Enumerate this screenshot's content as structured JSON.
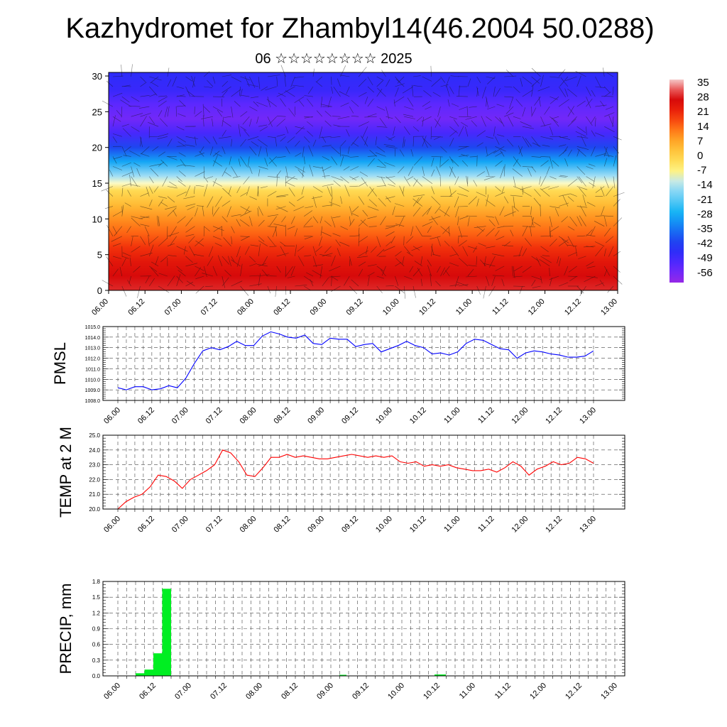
{
  "header": {
    "title": "Kazhydromet for Zhambyl14(46.2004 50.0288)",
    "subtitle": "06 ☆☆☆☆☆☆☆☆ 2025"
  },
  "colors": {
    "pmsl_line": "#0000ff",
    "temp_line": "#ff0000",
    "precip_bar": "#00ee22",
    "grid": "#444444"
  },
  "chart_data": [
    {
      "id": "vertical-section",
      "type": "heatmap",
      "title": "",
      "xlabel": "",
      "ylabel": "",
      "x_ticks": [
        "06.00",
        "06.12",
        "07.00",
        "07.12",
        "08.00",
        "08.12",
        "09.00",
        "09.12",
        "10.00",
        "10.12",
        "11.00",
        "11.12",
        "12.00",
        "12.12",
        "13.00"
      ],
      "y_ticks": [
        0,
        5,
        10,
        15,
        20,
        25,
        30
      ],
      "ylim": [
        0,
        30.5
      ],
      "colorbar_labels": [
        "35",
        "28",
        "21",
        "14",
        "7",
        "0",
        "-7",
        "-14",
        "-21",
        "-28",
        "-35",
        "-42",
        "-49",
        "-56"
      ],
      "colorbar_range": [
        -63,
        38
      ],
      "temperature_profile": {
        "height": [
          0,
          2,
          4,
          6,
          8,
          10,
          12,
          14,
          15,
          16,
          18,
          20,
          22,
          24,
          26,
          28,
          30
        ],
        "value": [
          30,
          28,
          25,
          20,
          15,
          10,
          4,
          -2,
          -10,
          -15,
          -30,
          -42,
          -52,
          -58,
          -55,
          -50,
          -48
        ]
      },
      "overlay": "wind barbs"
    },
    {
      "id": "pmsl",
      "type": "line",
      "ylabel": "PMSL",
      "ylim": [
        1008.0,
        1015.0
      ],
      "y_ticks": [
        "1008.0",
        "1009.0",
        "1010.0",
        "1011.0",
        "1012.0",
        "1013.0",
        "1014.0",
        "1015.0"
      ],
      "x_ticks": [
        "06.00",
        "06.12",
        "07.00",
        "07.12",
        "08.00",
        "08.12",
        "09.00",
        "09.12",
        "10.00",
        "10.12",
        "11.00",
        "11.12",
        "12.00",
        "12.12",
        "13.00"
      ],
      "series": [
        {
          "values": [
            1009.2,
            1009.0,
            1009.3,
            1009.3,
            1009.0,
            1009.1,
            1009.4,
            1009.2,
            1010.1,
            1011.5,
            1012.7,
            1013.0,
            1012.8,
            1013.1,
            1013.6,
            1013.2,
            1013.2,
            1014.1,
            1014.5,
            1014.3,
            1014.0,
            1013.9,
            1014.2,
            1013.4,
            1013.3,
            1013.9,
            1013.8,
            1013.8,
            1013.1,
            1013.3,
            1013.4,
            1012.6,
            1012.9,
            1013.2,
            1013.6,
            1013.2,
            1013.0,
            1012.4,
            1012.5,
            1012.3,
            1012.6,
            1013.4,
            1013.8,
            1013.7,
            1013.3,
            1012.9,
            1012.8,
            1012.0,
            1012.5,
            1012.7,
            1012.6,
            1012.4,
            1012.3,
            1012.1,
            1012.1,
            1012.2,
            1012.7
          ]
        }
      ]
    },
    {
      "id": "temp2m",
      "type": "line",
      "ylabel": "TEMP at 2 M",
      "ylim": [
        20.0,
        25.0
      ],
      "y_ticks": [
        "20.0",
        "21.0",
        "22.0",
        "23.0",
        "24.0",
        "25.0"
      ],
      "x_ticks": [
        "06.00",
        "06.12",
        "07.00",
        "07.12",
        "08.00",
        "08.12",
        "09.00",
        "09.12",
        "10.00",
        "10.12",
        "11.00",
        "11.12",
        "12.00",
        "12.12",
        "13.00"
      ],
      "series": [
        {
          "values": [
            20.0,
            20.5,
            20.8,
            21.0,
            21.5,
            22.3,
            22.2,
            21.9,
            21.4,
            22.0,
            22.3,
            22.6,
            23.0,
            24.0,
            23.8,
            23.2,
            22.3,
            22.2,
            22.8,
            23.5,
            23.5,
            23.7,
            23.5,
            23.6,
            23.5,
            23.4,
            23.4,
            23.5,
            23.6,
            23.7,
            23.6,
            23.5,
            23.6,
            23.5,
            23.6,
            23.2,
            23.1,
            23.2,
            22.9,
            23.0,
            22.9,
            23.0,
            22.8,
            22.7,
            22.6,
            22.6,
            22.7,
            22.5,
            22.8,
            23.2,
            22.9,
            22.3,
            22.7,
            22.9,
            23.2,
            23.0,
            23.1,
            23.5,
            23.4,
            23.1
          ]
        }
      ]
    },
    {
      "id": "precip",
      "type": "bar",
      "ylabel": "PRECIP, mm",
      "ylim": [
        0.0,
        1.8
      ],
      "y_ticks": [
        "0.0",
        "0.3",
        "0.6",
        "0.9",
        "1.2",
        "1.5",
        "1.8"
      ],
      "x_ticks": [
        "06.00",
        "06.12",
        "07.00",
        "07.12",
        "08.00",
        "08.12",
        "09.00",
        "09.12",
        "10.00",
        "10.12",
        "11.00",
        "11.12",
        "12.00",
        "12.12",
        "13.00"
      ],
      "series": [
        {
          "values": [
            0,
            0,
            0.05,
            0.12,
            0.43,
            1.66,
            0,
            0,
            0,
            0,
            0,
            0,
            0,
            0,
            0,
            0,
            0,
            0,
            0,
            0,
            0,
            0,
            0,
            0,
            0,
            0,
            0,
            0,
            0,
            0,
            0,
            0,
            0,
            0,
            0,
            0,
            0,
            0,
            0,
            0,
            0,
            0,
            0,
            0,
            0,
            0,
            0,
            0,
            0,
            0,
            0,
            0,
            0,
            0,
            0,
            0,
            0
          ]
        }
      ]
    }
  ]
}
